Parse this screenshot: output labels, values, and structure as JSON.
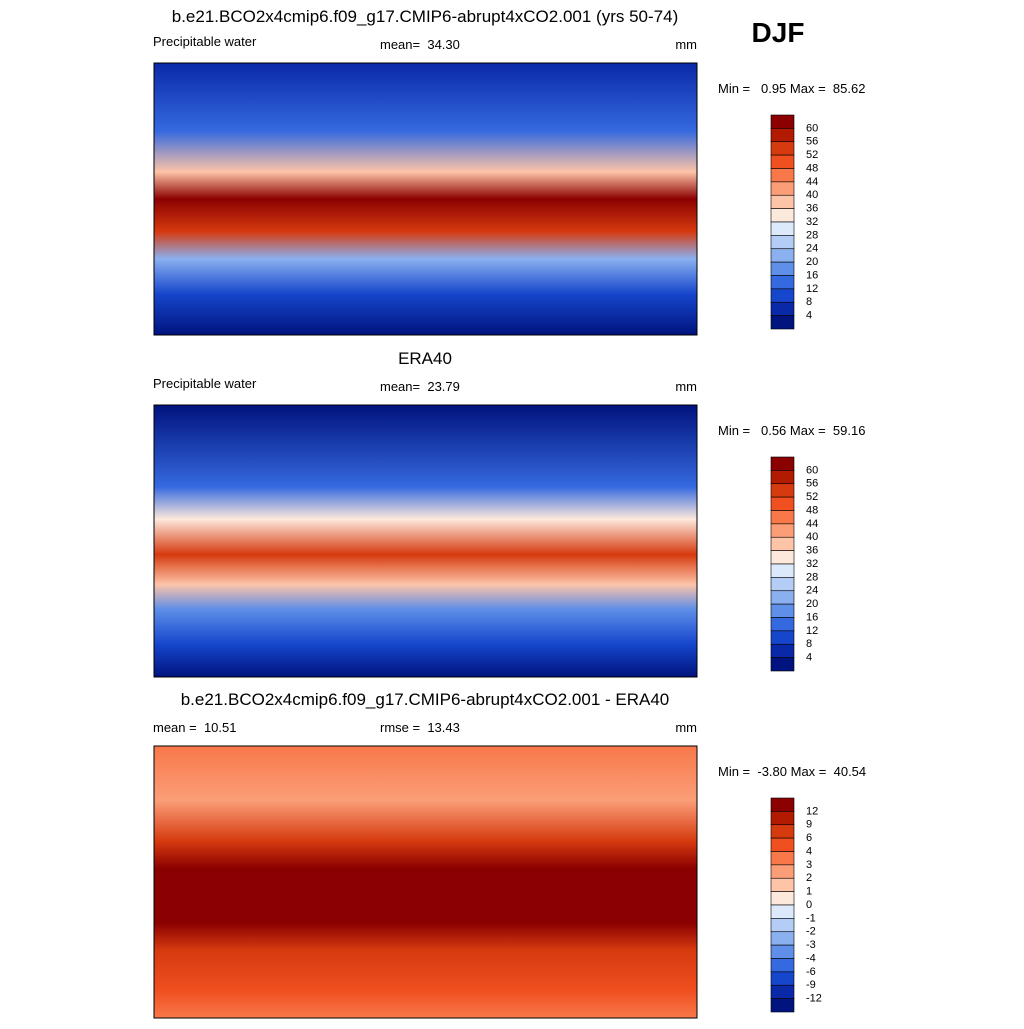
{
  "season": "DJF",
  "panels": [
    {
      "title": "b.e21.BCO2x4cmip6.f09_g17.CMIP6-abrupt4xCO2.001 (yrs 50-74)",
      "left": "Precipitable water",
      "center": "mean=  34.30",
      "units": "mm",
      "minmax": "Min =   0.95 Max =  85.62",
      "colorbar": [
        "60",
        "56",
        "52",
        "48",
        "44",
        "40",
        "36",
        "32",
        "28",
        "24",
        "20",
        "16",
        "12",
        "8",
        "4"
      ]
    },
    {
      "title": "ERA40",
      "left": "Precipitable water",
      "center": "mean=  23.79",
      "units": "mm",
      "minmax": "Min =   0.56 Max =  59.16",
      "colorbar": [
        "60",
        "56",
        "52",
        "48",
        "44",
        "40",
        "36",
        "32",
        "28",
        "24",
        "20",
        "16",
        "12",
        "8",
        "4"
      ]
    },
    {
      "title": "b.e21.BCO2x4cmip6.f09_g17.CMIP6-abrupt4xCO2.001 - ERA40",
      "left": "mean =  10.51",
      "center": "rmse =  13.43",
      "units": "mm",
      "minmax": "Min =  -3.80 Max =  40.54",
      "colorbar": [
        "12",
        "9",
        "6",
        "4",
        "3",
        "2",
        "1",
        "0",
        "-1",
        "-2",
        "-3",
        "-4",
        "-6",
        "-9",
        "-12"
      ]
    }
  ],
  "colorbar_colors": [
    "#8b0000",
    "#b31b00",
    "#d63a0f",
    "#f04f20",
    "#f8784a",
    "#fb9e78",
    "#fdc4a8",
    "#fde8dc",
    "#dce9fb",
    "#b4cdf6",
    "#8ab0f0",
    "#5f8fe8",
    "#3569df",
    "#1646cc",
    "#0a29a8",
    "#00137e"
  ]
}
